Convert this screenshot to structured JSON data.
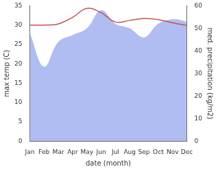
{
  "chart_data": {
    "type": "line",
    "x_label": "date (month)",
    "y_label": "max temp (C)",
    "y2_label": "med. precipitation (kg/m2)",
    "categories": [
      "Jan",
      "Feb",
      "Mar",
      "Apr",
      "May",
      "Jun",
      "Jul",
      "Aug",
      "Sep",
      "Oct",
      "Nov",
      "Dec"
    ],
    "series": [
      {
        "name": "max temp",
        "type": "line",
        "color": "#c85050",
        "values": [
          30,
          30,
          30.3,
          32,
          34.3,
          33.2,
          30.8,
          31.2,
          31.7,
          31.4,
          30.6,
          29.9
        ]
      },
      {
        "name": "med. precipitation",
        "type": "area",
        "color": "#b0bdf2",
        "axis": "y2",
        "values": [
          48,
          33,
          44,
          47,
          50,
          58,
          52,
          50,
          46,
          52,
          54,
          53
        ]
      }
    ],
    "ylim": [
      0,
      35
    ],
    "yticks": [
      0,
      5,
      10,
      15,
      20,
      25,
      30,
      35
    ],
    "y2lim": [
      0,
      60
    ],
    "y2ticks": [
      0,
      10,
      20,
      30,
      40,
      50,
      60
    ],
    "grid": false
  }
}
